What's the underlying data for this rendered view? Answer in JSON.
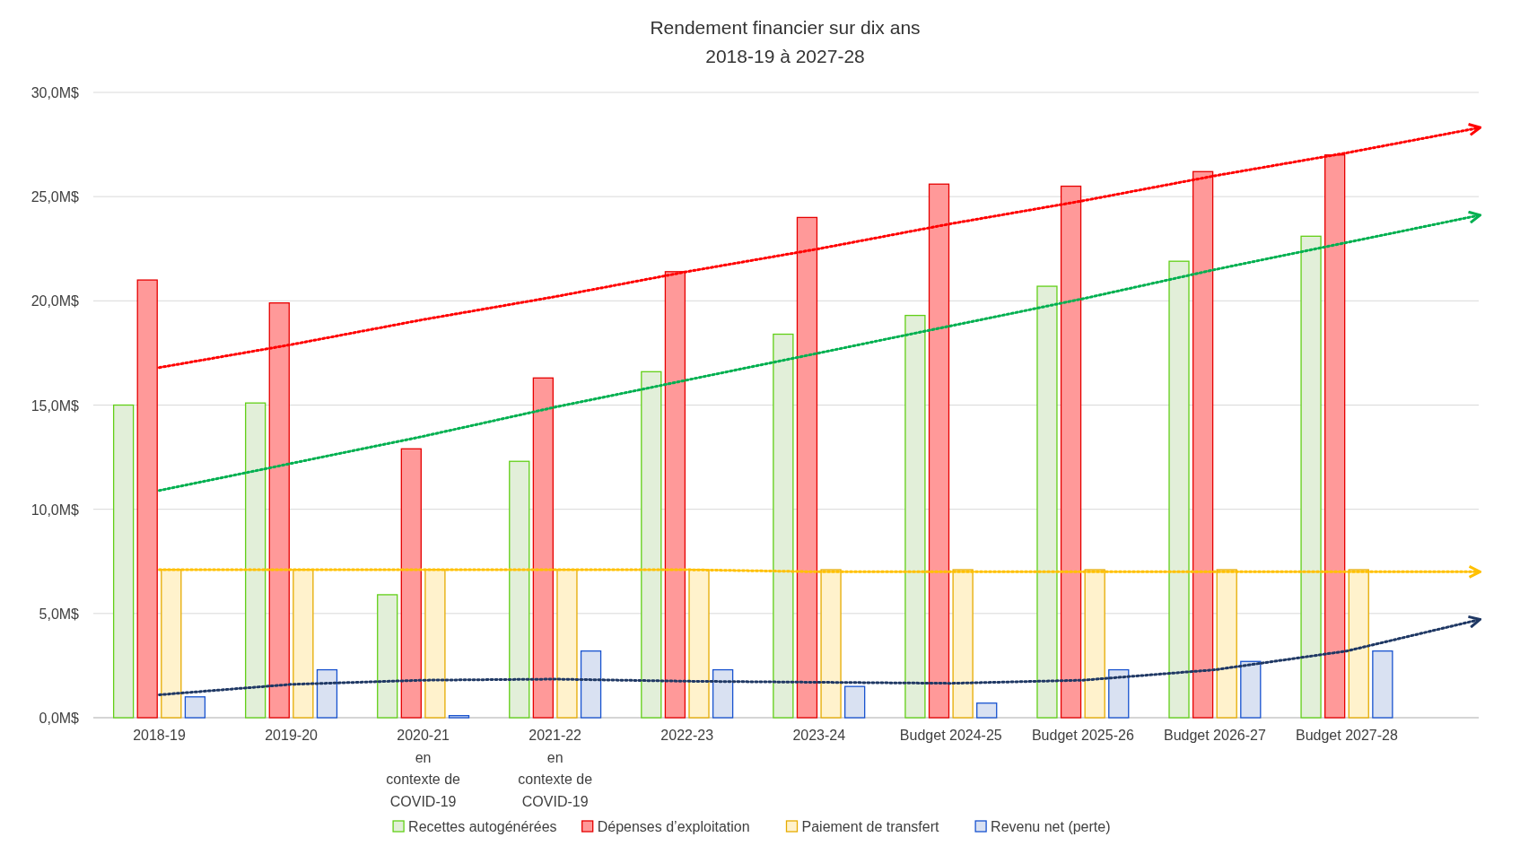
{
  "chart_data": {
    "type": "bar",
    "title": "Rendement financier sur dix ans\n2018-19 à 2027-28",
    "categories": [
      "2018-19",
      "2019-20",
      "2020-21\nen\ncontexte de\nCOVID-19",
      "2021-22\nen\ncontexte de\nCOVID-19",
      "2022-23",
      "2023-24",
      "Budget 2024-25",
      "Budget 2025-26",
      "Budget 2026-27",
      "Budget 2027-28",
      null
    ],
    "series": [
      {
        "name": "Recettes autogénérées",
        "color": "#e2efd9",
        "values": [
          15.0,
          15.1,
          5.9,
          12.3,
          16.6,
          18.4,
          19.3,
          20.7,
          21.9,
          23.1,
          null
        ]
      },
      {
        "name": "Dépenses d’exploitation",
        "color": "#ff9999",
        "values": [
          21.0,
          19.9,
          12.9,
          16.3,
          21.4,
          24.0,
          25.6,
          25.5,
          26.2,
          27.0,
          null
        ]
      },
      {
        "name": "Paiement de transfert",
        "color": "#fff2cc",
        "values": [
          7.1,
          7.1,
          7.1,
          7.1,
          7.1,
          7.1,
          7.1,
          7.1,
          7.1,
          7.1,
          null
        ]
      },
      {
        "name": "Revenu net (perte)",
        "color": "#d9e1f2",
        "values": [
          1.0,
          2.3,
          0.1,
          3.2,
          2.3,
          1.5,
          0.7,
          2.3,
          2.7,
          3.2,
          null
        ]
      },
      {
        "type": "line",
        "line_style": "dotted",
        "color": "#ff0000",
        "values": [
          16.8,
          17.9,
          19.1,
          20.2,
          21.4,
          22.5,
          23.7,
          24.8,
          26.0,
          27.1,
          28.3
        ]
      },
      {
        "type": "line",
        "line_style": "dotted",
        "color": "#00b050",
        "values": [
          10.9,
          12.2,
          13.5,
          14.9,
          16.2,
          17.5,
          18.8,
          20.1,
          21.5,
          22.8,
          24.1
        ]
      },
      {
        "type": "line",
        "line_style": "dotted",
        "color": "#ffc000",
        "values": [
          7.1,
          7.1,
          7.1,
          7.1,
          7.1,
          7.0,
          7.0,
          7.0,
          7.0,
          7.0,
          7.0
        ]
      },
      {
        "type": "line",
        "line_style": "dotted",
        "color": "#1f3864",
        "values": [
          1.1,
          1.6,
          1.8,
          1.85,
          1.75,
          1.7,
          1.65,
          1.8,
          2.3,
          3.2,
          4.7
        ]
      }
    ],
    "ylim": [
      0,
      30
    ],
    "yticks": [
      {
        "value": 0,
        "label": "0,0M$"
      },
      {
        "value": 5,
        "label": "5,0M$"
      },
      {
        "value": 10,
        "label": "10,0M$"
      },
      {
        "value": 15,
        "label": "15,0M$"
      },
      {
        "value": 20,
        "label": "20,0M$"
      },
      {
        "value": 25,
        "label": "25,0M$"
      },
      {
        "value": 30,
        "label": "30,0M$"
      }
    ],
    "grid": "y",
    "legend": "bottom"
  }
}
